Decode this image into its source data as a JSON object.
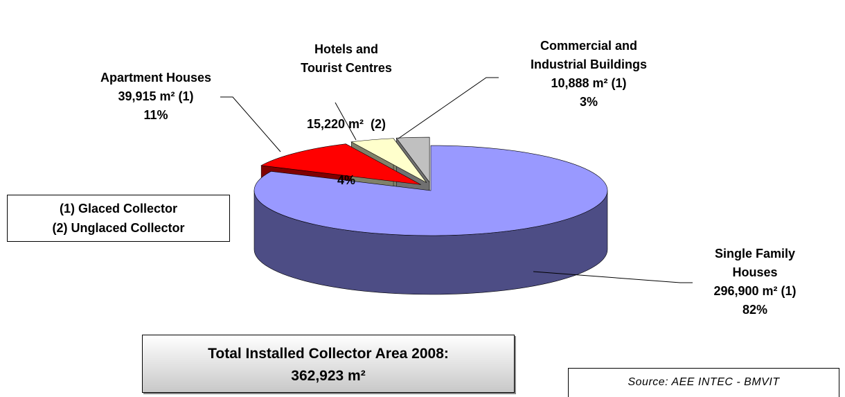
{
  "chart_data": {
    "type": "pie",
    "categories": [
      "Single Family Houses",
      "Apartment Houses",
      "Hotels and Tourist Centres",
      "Commercial and Industrial Buildings"
    ],
    "values": [
      82,
      11,
      4,
      3
    ],
    "value_labels": [
      "82%",
      "11%",
      "4%",
      "3%"
    ],
    "area_labels": [
      "296,900 m² (1)",
      "39,915 m² (1)",
      "15,220 m²  (2)",
      "10,888 m² (1)"
    ],
    "colors": [
      "#9999ff",
      "#ff0000",
      "#ffffcc",
      "#c0c0c0"
    ],
    "side_colors": [
      "#4d4d85",
      "#800000",
      "#80806a",
      "#707070"
    ],
    "notes": [
      "(1) Glaced Collector",
      "(2) Unglaced Collector"
    ],
    "total": {
      "title": "Total Installed Collector Area 2008:",
      "value": "362,923 m²"
    },
    "source": "Source: AEE INTEC - BMVIT"
  }
}
